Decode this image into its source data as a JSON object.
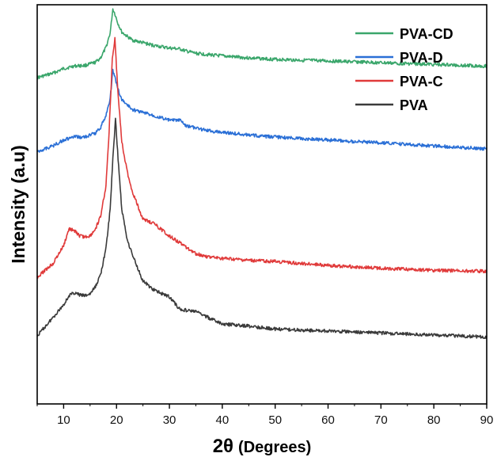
{
  "chart_data": {
    "type": "line",
    "xlabel_main": "2θ",
    "xlabel_sub": "(Degrees)",
    "ylabel": "Intensity (a.u)",
    "xlim": [
      5,
      90
    ],
    "xticks": [
      "10",
      "20",
      "30",
      "40",
      "50",
      "60",
      "70",
      "80",
      "90"
    ],
    "y_ticks_shown": false,
    "grid": false,
    "legend_position": "top-right",
    "series": [
      {
        "name": "PVA-CD",
        "color": "#3aa66b",
        "x": [
          5,
          8,
          10,
          12,
          14,
          16,
          17,
          18,
          18.8,
          19.3,
          19.7,
          20.2,
          21,
          22,
          23,
          25,
          27,
          30,
          32,
          33,
          35,
          38,
          40,
          45,
          50,
          60,
          70,
          80,
          90
        ],
        "y": [
          0.768,
          0.72,
          0.672,
          0.645,
          0.639,
          0.607,
          0.557,
          0.452,
          0.297,
          0.045,
          0.096,
          0.187,
          0.288,
          0.333,
          0.372,
          0.4,
          0.428,
          0.456,
          0.466,
          0.486,
          0.511,
          0.528,
          0.539,
          0.56,
          0.574,
          0.592,
          0.61,
          0.628,
          0.645
        ]
      },
      {
        "name": "PVA-D",
        "color": "#2a6fd6",
        "x": [
          5,
          8,
          10,
          12,
          14,
          16,
          17,
          18,
          18.8,
          19.3,
          19.7,
          20.2,
          21,
          22,
          23,
          25,
          27,
          30,
          32,
          33,
          35,
          38,
          40,
          45,
          50,
          60,
          70,
          80,
          90
        ],
        "y": [
          1.546,
          1.484,
          1.423,
          1.392,
          1.392,
          1.35,
          1.289,
          1.165,
          0.984,
          0.696,
          0.763,
          0.876,
          1.0,
          1.052,
          1.103,
          1.134,
          1.165,
          1.216,
          1.216,
          1.268,
          1.299,
          1.33,
          1.34,
          1.371,
          1.392,
          1.423,
          1.454,
          1.485,
          1.515
        ]
      },
      {
        "name": "PVA-C",
        "color": "#e03a3a",
        "x": [
          5,
          8,
          10,
          11,
          12,
          13,
          14,
          15,
          16,
          17,
          18,
          18.6,
          19.2,
          19.7,
          20.2,
          21,
          22,
          23,
          25,
          27,
          30,
          32,
          35,
          38,
          40,
          45,
          50,
          60,
          70,
          80,
          90
        ],
        "y": [
          2.866,
          2.722,
          2.536,
          2.361,
          2.371,
          2.433,
          2.443,
          2.433,
          2.361,
          2.227,
          1.907,
          1.34,
          0.567,
          0.351,
          0.866,
          1.443,
          1.753,
          1.969,
          2.258,
          2.299,
          2.433,
          2.505,
          2.62,
          2.66,
          2.67,
          2.691,
          2.701,
          2.742,
          2.773,
          2.794,
          2.804
        ]
      },
      {
        "name": "PVA",
        "color": "#3a3a3a",
        "x": [
          5,
          8,
          10,
          11,
          12,
          13,
          14,
          15,
          16,
          17,
          18,
          18.8,
          19.3,
          19.8,
          20.3,
          21,
          22,
          23,
          25,
          27,
          30,
          32,
          35,
          38,
          40,
          45,
          50,
          60,
          70,
          80,
          90
        ],
        "y": [
          3.485,
          3.289,
          3.155,
          3.062,
          3.031,
          3.052,
          3.062,
          3.042,
          2.969,
          2.835,
          2.567,
          2.155,
          1.619,
          1.206,
          1.619,
          2.155,
          2.464,
          2.629,
          2.907,
          3.0,
          3.072,
          3.206,
          3.227,
          3.309,
          3.36,
          3.381,
          3.412,
          3.433,
          3.454,
          3.474,
          3.495
        ]
      }
    ]
  }
}
